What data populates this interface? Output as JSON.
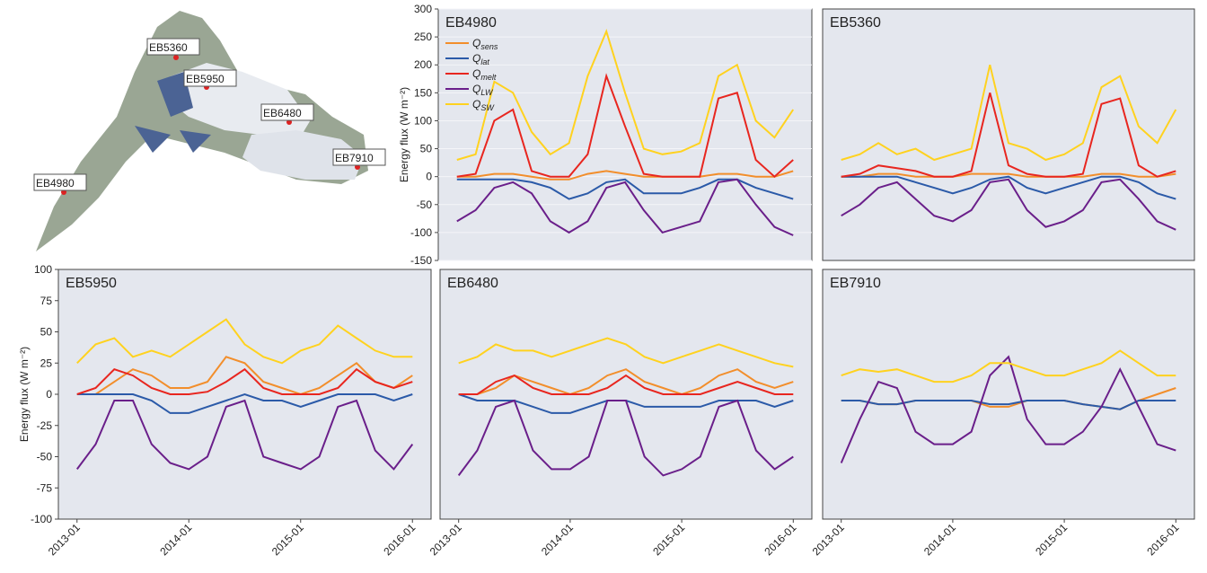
{
  "map": {
    "stations": [
      "EB5360",
      "EB5950",
      "EB6480",
      "EB7910",
      "EB4980"
    ]
  },
  "chart_data": [
    {
      "type": "line",
      "title": "EB4980",
      "y_label": "Energy flux (W m⁻²)",
      "x": [
        "2013-01",
        "2013-03",
        "2013-05",
        "2013-07",
        "2013-09",
        "2013-11",
        "2014-01",
        "2014-03",
        "2014-05",
        "2014-07",
        "2014-09",
        "2014-11",
        "2015-01",
        "2015-03",
        "2015-05",
        "2015-07",
        "2015-09",
        "2015-11",
        "2016-01"
      ],
      "xlim": [
        "2012-11",
        "2016-03"
      ],
      "ylim": [
        -150,
        300
      ],
      "yticks": [
        -150,
        -100,
        -50,
        0,
        50,
        100,
        150,
        200,
        250,
        300
      ],
      "grid": true,
      "legend": "upper-left",
      "series": [
        {
          "name": "Qsens",
          "color": "#f28e2b",
          "values": [
            0,
            0,
            5,
            5,
            0,
            -5,
            -5,
            5,
            10,
            5,
            0,
            0,
            0,
            0,
            5,
            5,
            0,
            0,
            10
          ]
        },
        {
          "name": "Qlat",
          "color": "#2b5aa8",
          "values": [
            -5,
            -5,
            -5,
            -5,
            -10,
            -20,
            -40,
            -30,
            -10,
            -5,
            -30,
            -30,
            -30,
            -20,
            -5,
            -5,
            -20,
            -30,
            -40
          ]
        },
        {
          "name": "Qmelt",
          "color": "#e8261f",
          "values": [
            0,
            5,
            100,
            120,
            10,
            0,
            0,
            40,
            180,
            90,
            5,
            0,
            0,
            0,
            140,
            150,
            30,
            0,
            30
          ]
        },
        {
          "name": "QLW",
          "color": "#6a1f8a",
          "values": [
            -80,
            -60,
            -20,
            -10,
            -30,
            -80,
            -100,
            -80,
            -20,
            -10,
            -60,
            -100,
            -90,
            -80,
            -10,
            -5,
            -50,
            -90,
            -105
          ]
        },
        {
          "name": "QSW",
          "color": "#ffd21f",
          "values": [
            30,
            40,
            170,
            150,
            80,
            40,
            60,
            180,
            260,
            150,
            50,
            40,
            45,
            60,
            180,
            200,
            100,
            70,
            120
          ]
        }
      ]
    },
    {
      "type": "line",
      "title": "EB5360",
      "x": [
        "2013-01",
        "2013-03",
        "2013-05",
        "2013-07",
        "2013-09",
        "2013-11",
        "2014-01",
        "2014-03",
        "2014-05",
        "2014-07",
        "2014-09",
        "2014-11",
        "2015-01",
        "2015-03",
        "2015-05",
        "2015-07",
        "2015-09",
        "2015-11",
        "2016-01"
      ],
      "xlim": [
        "2012-11",
        "2016-03"
      ],
      "ylim": [
        -150,
        300
      ],
      "series": [
        {
          "color": "#f28e2b",
          "values": [
            0,
            0,
            5,
            5,
            0,
            0,
            0,
            5,
            5,
            5,
            0,
            0,
            0,
            0,
            5,
            5,
            0,
            0,
            5
          ]
        },
        {
          "color": "#2b5aa8",
          "values": [
            0,
            0,
            0,
            0,
            -10,
            -20,
            -30,
            -20,
            -5,
            0,
            -20,
            -30,
            -20,
            -10,
            0,
            0,
            -10,
            -30,
            -40
          ]
        },
        {
          "color": "#e8261f",
          "values": [
            0,
            5,
            20,
            15,
            10,
            0,
            0,
            10,
            150,
            20,
            5,
            0,
            0,
            5,
            130,
            140,
            20,
            0,
            10
          ]
        },
        {
          "color": "#6a1f8a",
          "values": [
            -70,
            -50,
            -20,
            -10,
            -40,
            -70,
            -80,
            -60,
            -10,
            -5,
            -60,
            -90,
            -80,
            -60,
            -10,
            -5,
            -40,
            -80,
            -95
          ]
        },
        {
          "color": "#ffd21f",
          "values": [
            30,
            40,
            60,
            40,
            50,
            30,
            40,
            50,
            200,
            60,
            50,
            30,
            40,
            60,
            160,
            180,
            90,
            60,
            120
          ]
        }
      ]
    },
    {
      "type": "line",
      "title": "EB5950",
      "y_label": "Energy flux (W m⁻²)",
      "x": [
        "2013-01",
        "2013-03",
        "2013-05",
        "2013-07",
        "2013-09",
        "2013-11",
        "2014-01",
        "2014-03",
        "2014-05",
        "2014-07",
        "2014-09",
        "2014-11",
        "2015-01",
        "2015-03",
        "2015-05",
        "2015-07",
        "2015-09",
        "2015-11",
        "2016-01"
      ],
      "xlim": [
        "2012-11",
        "2016-03"
      ],
      "xticks": [
        "2013-01",
        "2014-01",
        "2015-01",
        "2016-01"
      ],
      "ylim": [
        -100,
        100
      ],
      "yticks": [
        -100,
        -75,
        -50,
        -25,
        0,
        25,
        50,
        75,
        100
      ],
      "series": [
        {
          "color": "#f28e2b",
          "values": [
            0,
            0,
            10,
            20,
            15,
            5,
            5,
            10,
            30,
            25,
            10,
            5,
            0,
            5,
            15,
            25,
            10,
            5,
            15
          ]
        },
        {
          "color": "#2b5aa8",
          "values": [
            0,
            0,
            0,
            0,
            -5,
            -15,
            -15,
            -10,
            -5,
            0,
            -5,
            -5,
            -10,
            -5,
            0,
            0,
            0,
            -5,
            0
          ]
        },
        {
          "color": "#e8261f",
          "values": [
            0,
            5,
            20,
            15,
            5,
            0,
            0,
            2,
            10,
            20,
            5,
            0,
            0,
            0,
            5,
            20,
            10,
            5,
            10
          ]
        },
        {
          "color": "#6a1f8a",
          "values": [
            -60,
            -40,
            -5,
            -5,
            -40,
            -55,
            -60,
            -50,
            -10,
            -5,
            -50,
            -55,
            -60,
            -50,
            -10,
            -5,
            -45,
            -60,
            -40
          ]
        },
        {
          "color": "#ffd21f",
          "values": [
            25,
            40,
            45,
            30,
            35,
            30,
            40,
            50,
            60,
            40,
            30,
            25,
            35,
            40,
            55,
            45,
            35,
            30,
            30
          ]
        }
      ]
    },
    {
      "type": "line",
      "title": "EB6480",
      "x": [
        "2013-01",
        "2013-03",
        "2013-05",
        "2013-07",
        "2013-09",
        "2013-11",
        "2014-01",
        "2014-03",
        "2014-05",
        "2014-07",
        "2014-09",
        "2014-11",
        "2015-01",
        "2015-03",
        "2015-05",
        "2015-07",
        "2015-09",
        "2015-11",
        "2016-01"
      ],
      "xlim": [
        "2012-11",
        "2016-03"
      ],
      "xticks": [
        "2013-01",
        "2014-01",
        "2015-01",
        "2016-01"
      ],
      "ylim": [
        -100,
        100
      ],
      "series": [
        {
          "color": "#f28e2b",
          "values": [
            0,
            0,
            5,
            15,
            10,
            5,
            0,
            5,
            15,
            20,
            10,
            5,
            0,
            5,
            15,
            20,
            10,
            5,
            10
          ]
        },
        {
          "color": "#2b5aa8",
          "values": [
            0,
            -5,
            -5,
            -5,
            -10,
            -15,
            -15,
            -10,
            -5,
            -5,
            -10,
            -10,
            -10,
            -10,
            -5,
            -5,
            -5,
            -10,
            -5
          ]
        },
        {
          "color": "#e8261f",
          "values": [
            0,
            0,
            10,
            15,
            5,
            0,
            0,
            0,
            5,
            15,
            5,
            0,
            0,
            0,
            5,
            10,
            5,
            0,
            0
          ]
        },
        {
          "color": "#6a1f8a",
          "values": [
            -65,
            -45,
            -10,
            -5,
            -45,
            -60,
            -60,
            -50,
            -5,
            -5,
            -50,
            -65,
            -60,
            -50,
            -10,
            -5,
            -45,
            -60,
            -50
          ]
        },
        {
          "color": "#ffd21f",
          "values": [
            25,
            30,
            40,
            35,
            35,
            30,
            35,
            40,
            45,
            40,
            30,
            25,
            30,
            35,
            40,
            35,
            30,
            25,
            22
          ]
        }
      ]
    },
    {
      "type": "line",
      "title": "EB7910",
      "x": [
        "2013-01",
        "2013-03",
        "2013-05",
        "2013-07",
        "2013-09",
        "2013-11",
        "2014-01",
        "2014-03",
        "2014-05",
        "2014-07",
        "2014-09",
        "2014-11",
        "2015-01",
        "2015-03",
        "2015-05",
        "2015-07",
        "2015-09",
        "2015-11",
        "2016-01"
      ],
      "xlim": [
        "2012-11",
        "2016-03"
      ],
      "xticks": [
        "2013-01",
        "2014-01",
        "2015-01",
        "2016-01"
      ],
      "ylim": [
        -100,
        100
      ],
      "series": [
        {
          "color": "#f28e2b",
          "values": [
            -5,
            -5,
            -8,
            -8,
            -5,
            -5,
            -5,
            -5,
            -10,
            -10,
            -5,
            -5,
            -5,
            -8,
            -10,
            -12,
            -5,
            0,
            5
          ]
        },
        {
          "color": "#2b5aa8",
          "values": [
            -5,
            -5,
            -8,
            -8,
            -5,
            -5,
            -5,
            -5,
            -8,
            -8,
            -5,
            -5,
            -5,
            -8,
            -10,
            -12,
            -5,
            -5,
            -5
          ]
        },
        {
          "color": "#6a1f8a",
          "values": [
            -55,
            -20,
            10,
            5,
            -30,
            -40,
            -40,
            -30,
            15,
            30,
            -20,
            -40,
            -40,
            -30,
            -10,
            20,
            -10,
            -40,
            -45
          ]
        },
        {
          "color": "#ffd21f",
          "values": [
            15,
            20,
            18,
            20,
            15,
            10,
            10,
            15,
            25,
            25,
            20,
            15,
            15,
            20,
            25,
            35,
            25,
            15,
            15
          ]
        }
      ]
    }
  ]
}
